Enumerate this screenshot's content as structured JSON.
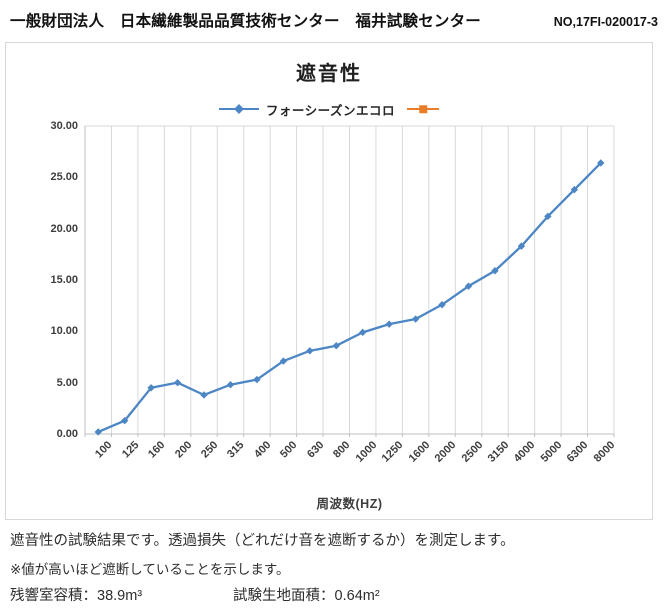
{
  "header": {
    "org": "一般財団法人　日本繊維製品品質技術センター　福井試験センター",
    "report_no": "NO,17FI-020017-3"
  },
  "chart_data": {
    "type": "line",
    "title": "遮音性",
    "categories": [
      "100",
      "125",
      "160",
      "200",
      "250",
      "315",
      "400",
      "500",
      "630",
      "800",
      "1000",
      "1250",
      "1600",
      "2000",
      "2500",
      "3150",
      "4000",
      "5000",
      "6300",
      "8000"
    ],
    "series": [
      {
        "name": "フォーシーズンエコロ",
        "color": "#4c86c4",
        "marker": "diamond",
        "values": [
          0.2,
          1.3,
          4.5,
          5.0,
          3.8,
          4.8,
          5.3,
          7.1,
          8.1,
          8.6,
          9.9,
          10.7,
          11.2,
          12.6,
          14.4,
          15.9,
          18.3,
          21.2,
          23.8,
          26.4
        ]
      },
      {
        "name": "",
        "color": "#e87d2a",
        "marker": "square",
        "values": []
      }
    ],
    "xlabel": "周波数(HZ)",
    "ylabel": "",
    "ylim": [
      0,
      30
    ],
    "ytick_step": 5,
    "ytick_labels": [
      "0.00",
      "5.00",
      "10.00",
      "15.00",
      "20.00",
      "25.00",
      "30.00"
    ],
    "grid": "vertical-only",
    "legend_position": "top-center",
    "colors": {
      "gridline": "#d9d9d9",
      "axis_line": "#bfbfbf",
      "tick_label": "#3d3d3d"
    }
  },
  "footer": {
    "desc1": "遮音性の試験結果です。透過損失（どれだけ音を遮断するか）を測定します。",
    "desc2": "※値が高いほど遮断していることを示します。",
    "spec_room_volume": "残響室容積：38.9m³",
    "spec_fabric_area": "試験生地面積：0.64m²"
  }
}
